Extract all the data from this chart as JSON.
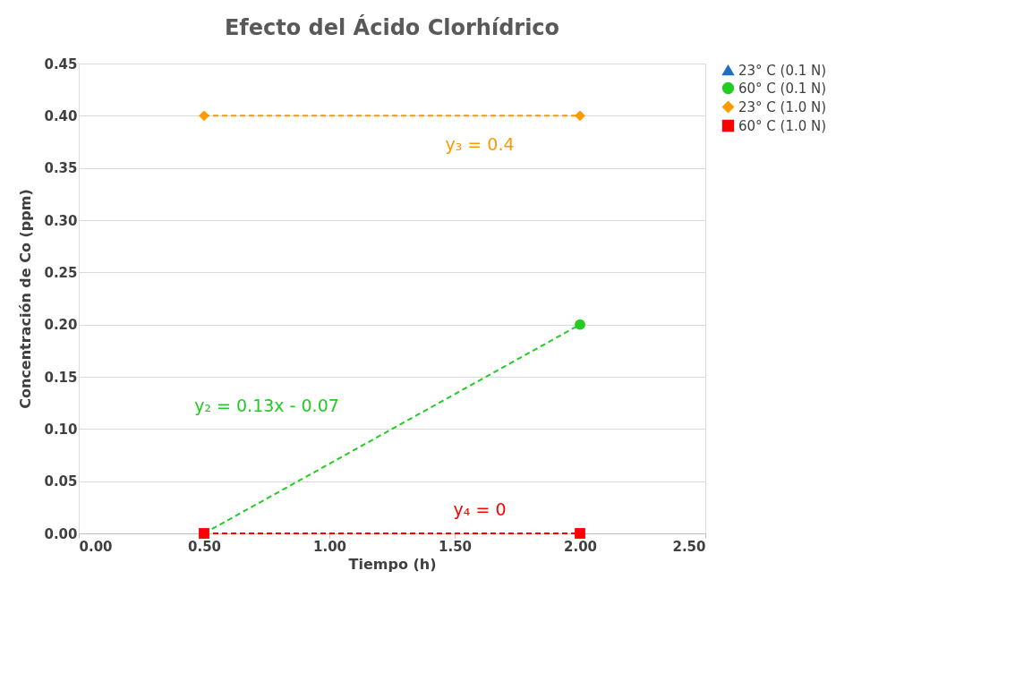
{
  "chart_data": {
    "type": "line",
    "title": "Efecto del Ácido Clorhídrico",
    "xlabel": "Tiempo (h)",
    "ylabel": "Concentración de Co (ppm)",
    "x": [
      0.5,
      2.0
    ],
    "series": [
      {
        "name": "23° C (0.1 N)",
        "color": "#1f6fc5",
        "marker": "triangle",
        "values": [
          null,
          null
        ]
      },
      {
        "name": "60° C (0.1 N)",
        "color": "#22cc22",
        "marker": "circle",
        "values": [
          0,
          0.2
        ]
      },
      {
        "name": "23° C (1.0 N)",
        "color": "#ff9900",
        "marker": "diamond",
        "values": [
          0.4,
          0.4
        ]
      },
      {
        "name": "60° C (1.0 N)",
        "color": "#ff0000",
        "marker": "square",
        "values": [
          0,
          0
        ]
      }
    ],
    "annotations": [
      "y₃ = 0.4",
      "y₂ = 0.13x - 0.07",
      "y₄ = 0"
    ],
    "line_style": "dashed",
    "legend": "right",
    "grid": "y",
    "xlim": [
      0,
      2.5
    ],
    "xticks": [
      {
        "value": 0,
        "label": "0.00"
      },
      {
        "value": 0.5,
        "label": "0.50"
      },
      {
        "value": 1,
        "label": "1.00"
      },
      {
        "value": 1.5,
        "label": "1.50"
      },
      {
        "value": 2,
        "label": "2.00"
      },
      {
        "value": 2.5,
        "label": "2.50"
      }
    ],
    "ylim": [
      0,
      0.45
    ],
    "yticks": [
      {
        "value": 0,
        "label": "0.00"
      },
      {
        "value": 0.05,
        "label": "0.05"
      },
      {
        "value": 0.1,
        "label": "0.10"
      },
      {
        "value": 0.15,
        "label": "0.15"
      },
      {
        "value": 0.2,
        "label": "0.20"
      },
      {
        "value": 0.25,
        "label": "0.25"
      },
      {
        "value": 0.3,
        "label": "0.30"
      },
      {
        "value": 0.35,
        "label": "0.35"
      },
      {
        "value": 0.4,
        "label": "0.40"
      },
      {
        "value": 0.45,
        "label": "0.45"
      }
    ]
  }
}
